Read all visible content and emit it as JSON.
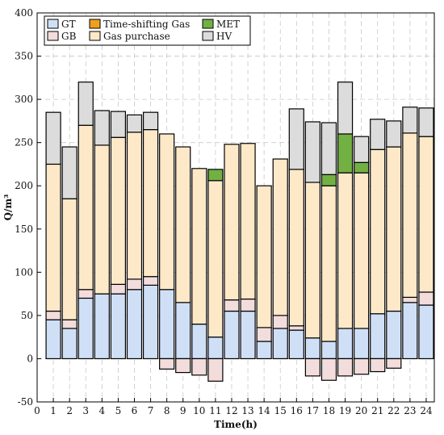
{
  "chart_data": {
    "type": "bar",
    "stacked": true,
    "xlabel": "Time(h)",
    "ylabel": "Q/m³",
    "xlim": [
      0,
      24.5
    ],
    "ylim": [
      -50,
      400
    ],
    "xticks": [
      "0",
      "1",
      "2",
      "3",
      "4",
      "5",
      "6",
      "7",
      "8",
      "9",
      "10",
      "11",
      "12",
      "13",
      "14",
      "15",
      "16",
      "17",
      "18",
      "19",
      "20",
      "21",
      "22",
      "23",
      "24"
    ],
    "yticks": [
      "-50",
      "0",
      "50",
      "100",
      "150",
      "200",
      "250",
      "300",
      "350",
      "400"
    ],
    "grid": true,
    "grid_style": "dashed",
    "legend_position": "top-left",
    "categories": [
      1,
      2,
      3,
      4,
      5,
      6,
      7,
      8,
      9,
      10,
      11,
      12,
      13,
      14,
      15,
      16,
      17,
      18,
      19,
      20,
      21,
      22,
      23,
      24
    ],
    "series": [
      {
        "name": "GT",
        "color": "#cfe0f6",
        "values": [
          45,
          35,
          70,
          75,
          75,
          80,
          85,
          80,
          65,
          40,
          25,
          55,
          55,
          20,
          35,
          33,
          24,
          20,
          35,
          35,
          52,
          55,
          65,
          62
        ]
      },
      {
        "name": "GB",
        "color": "#f2dcdc",
        "values": [
          10,
          10,
          10,
          0,
          11,
          12,
          10,
          -12,
          -16,
          -19,
          -26,
          13,
          14,
          16,
          15,
          5,
          -20,
          -25,
          -20,
          -18,
          -15,
          -11,
          6,
          15
        ]
      },
      {
        "name": "Time-shifting Gas",
        "color": "#f0a020",
        "values": [
          0,
          0,
          0,
          0,
          0,
          0,
          0,
          0,
          0,
          0,
          0,
          0,
          0,
          0,
          0,
          0,
          0,
          0,
          0,
          0,
          0,
          0,
          0,
          0
        ]
      },
      {
        "name": "Gas purchase",
        "color": "#fde9c8",
        "values": [
          170,
          140,
          190,
          172,
          170,
          170,
          170,
          180,
          180,
          180,
          181,
          180,
          180,
          164,
          181,
          181,
          180,
          180,
          180,
          180,
          190,
          190,
          190,
          180
        ]
      },
      {
        "name": "MET",
        "color": "#72b044",
        "values": [
          0,
          0,
          0,
          0,
          0,
          0,
          0,
          0,
          0,
          0,
          13,
          0,
          0,
          0,
          0,
          0,
          0,
          13,
          45,
          12,
          0,
          0,
          0,
          0
        ]
      },
      {
        "name": "HV",
        "color": "#dcdcdc",
        "values": [
          60,
          60,
          50,
          40,
          30,
          20,
          20,
          0,
          0,
          0,
          0,
          0,
          0,
          0,
          0,
          70,
          70,
          60,
          60,
          30,
          35,
          30,
          30,
          33
        ]
      }
    ]
  }
}
